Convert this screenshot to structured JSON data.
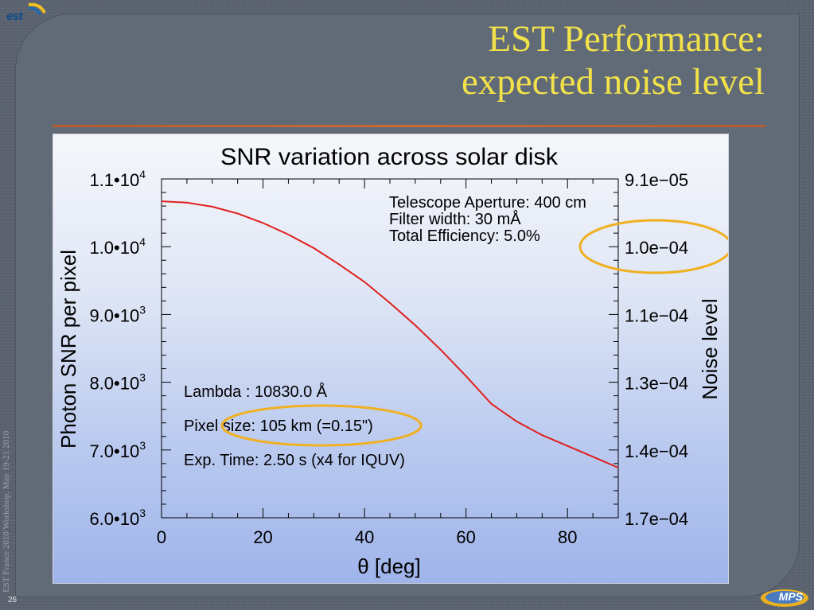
{
  "slide": {
    "title_line1": "EST Performance:",
    "title_line2": "expected noise level",
    "side_text": "EST France 2010 Workshop, May 19-21 2010",
    "page_number": "26",
    "logo_text": "est",
    "mps_text": "MPS"
  },
  "colors": {
    "title": "#f2e24a",
    "curve": "#e0201c",
    "highlight_ellipse": "#f0b020",
    "rule": "#c96a36"
  },
  "chart_data": {
    "type": "line",
    "title": "SNR variation across solar disk",
    "xlabel": "θ [deg]",
    "ylabel": "Photon SNR per pixel",
    "y2label": "Noise level",
    "xlim": [
      0,
      90
    ],
    "ylim": [
      6000,
      11000
    ],
    "x_ticks": [
      0,
      20,
      40,
      60,
      80
    ],
    "x_tick_labels": [
      "0",
      "20",
      "40",
      "60",
      "80"
    ],
    "y_ticks": [
      6000,
      7000,
      8000,
      9000,
      10000,
      11000
    ],
    "y_tick_labels": [
      {
        "base": "6.0•10",
        "exp": "3"
      },
      {
        "base": "7.0•10",
        "exp": "3"
      },
      {
        "base": "8.0•10",
        "exp": "3"
      },
      {
        "base": "9.0•10",
        "exp": "3"
      },
      {
        "base": "1.0•10",
        "exp": "4"
      },
      {
        "base": "1.1•10",
        "exp": "4"
      }
    ],
    "y2_tick_labels": [
      "1.7e−04",
      "1.4e−04",
      "1.3e−04",
      "1.1e−04",
      "1.0e−04",
      "9.1e−05"
    ],
    "series": [
      {
        "x": [
          0,
          5,
          10,
          15,
          20,
          25,
          30,
          35,
          40,
          45,
          50,
          55,
          60,
          65,
          70,
          75,
          80,
          85,
          90
        ],
        "values": [
          10670,
          10650,
          10590,
          10490,
          10350,
          10180,
          9980,
          9740,
          9480,
          9170,
          8840,
          8480,
          8090,
          7680,
          7420,
          7220,
          7060,
          6900,
          6740
        ]
      }
    ],
    "annotations_top_right": [
      "Telescope Aperture: 400 cm",
      "Filter width: 30 mÅ",
      "Total Efficiency: 5.0%"
    ],
    "annotations_bottom_left": [
      "Lambda : 10830.0 Å",
      "Pixel size: 105 km (=0.15\")",
      "Exp. Time: 2.50 s (x4 for IQUV)"
    ],
    "grid": false
  }
}
